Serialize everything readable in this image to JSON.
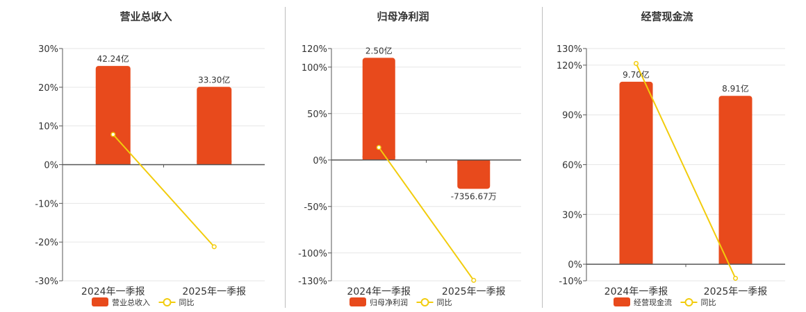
{
  "colors": {
    "bar": "#e84a1c",
    "line": "#f2cc0c",
    "grid": "#e6e6e6",
    "axis": "#555555",
    "text": "#333333"
  },
  "chart_data": [
    {
      "type": "bar",
      "title": "营业总收入",
      "categories": [
        "2024年一季报",
        "2025年一季报"
      ],
      "bar_series": {
        "name": "营业总收入",
        "values_yi": [
          42.24,
          33.3
        ],
        "labels": [
          "42.24亿",
          "33.30亿"
        ]
      },
      "line_series": {
        "name": "同比",
        "values_pct": [
          7.8,
          -21.2
        ]
      },
      "ylim": [
        -30,
        30
      ],
      "yticks": [
        30,
        20,
        10,
        0,
        -10,
        -20,
        -30
      ],
      "ytick_labels": [
        "30%",
        "20%",
        "10%",
        "0%",
        "-10%",
        "-20%",
        "-30%"
      ],
      "bar_pct": [
        25.5,
        20.1
      ],
      "grid": true,
      "legend_position": "bottom-center"
    },
    {
      "type": "bar",
      "title": "归母净利润",
      "categories": [
        "2024年一季报",
        "2025年一季报"
      ],
      "bar_series": {
        "name": "归母净利润",
        "values_yi": [
          2.5,
          -0.735667
        ],
        "labels": [
          "2.50亿",
          "-7356.67万"
        ]
      },
      "line_series": {
        "name": "同比",
        "values_pct": [
          13.5,
          -129.5
        ]
      },
      "ylim": [
        -130,
        120
      ],
      "yticks": [
        120,
        100,
        50,
        0,
        -50,
        -100,
        -130
      ],
      "ytick_labels": [
        "120%",
        "100%",
        "50%",
        "0%",
        "-50%",
        "-100%",
        "-130%"
      ],
      "bar_pct": [
        110.0,
        -31.0
      ],
      "grid": true,
      "legend_position": "bottom-center"
    },
    {
      "type": "bar",
      "title": "经营现金流",
      "categories": [
        "2024年一季报",
        "2025年一季报"
      ],
      "bar_series": {
        "name": "经营现金流",
        "values_yi": [
          9.7,
          8.91
        ],
        "labels": [
          "9.70亿",
          "8.91亿"
        ]
      },
      "line_series": {
        "name": "同比",
        "values_pct": [
          121.0,
          -8.5
        ]
      },
      "ylim": [
        -10,
        130
      ],
      "yticks": [
        130,
        120,
        90,
        60,
        30,
        0,
        -10
      ],
      "ytick_labels": [
        "130%",
        "120%",
        "90%",
        "60%",
        "30%",
        "0%",
        "-10%"
      ],
      "bar_pct": [
        110.0,
        101.5
      ],
      "grid": true,
      "legend_position": "bottom-center"
    }
  ]
}
